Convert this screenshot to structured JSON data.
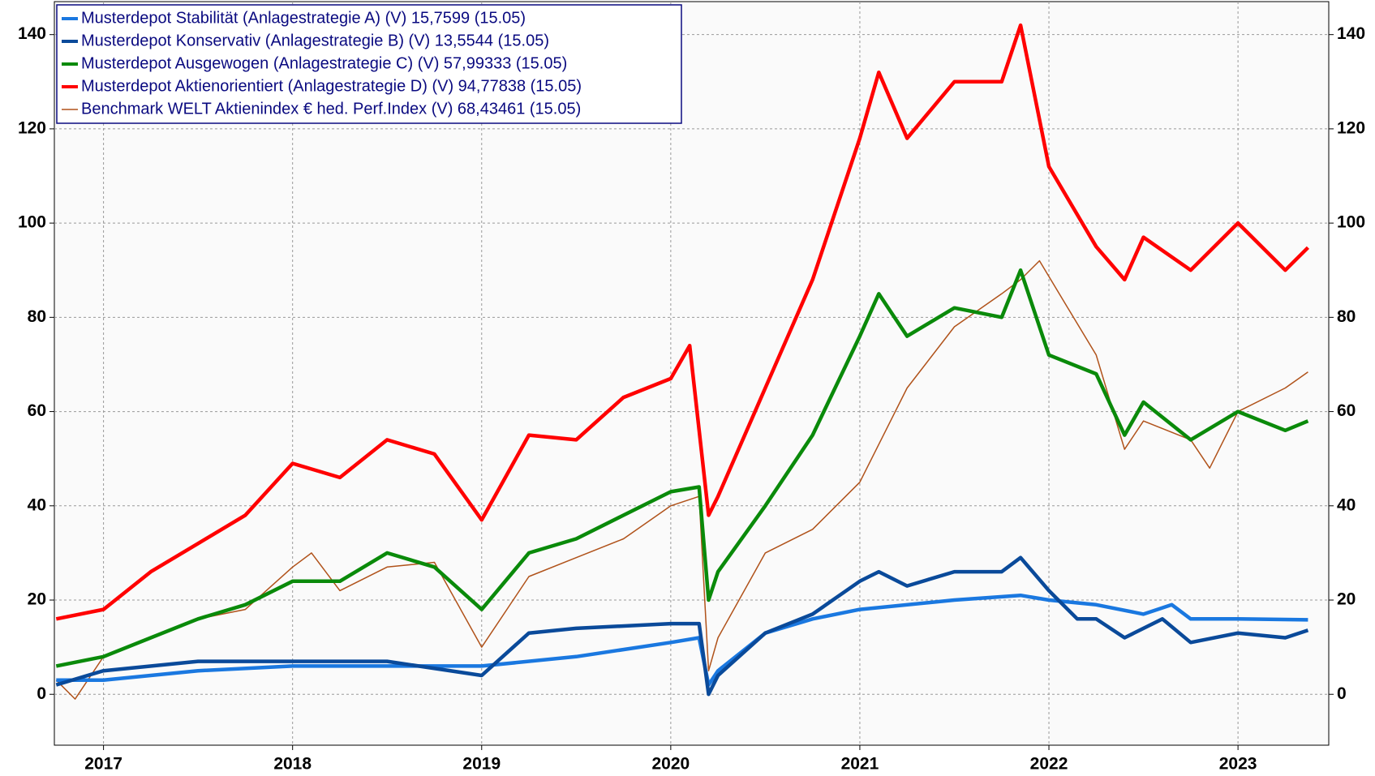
{
  "chart_data": {
    "type": "line",
    "xlim": [
      2016.74,
      2023.48
    ],
    "ylim": [
      -10.8,
      147
    ],
    "xticks": [
      2017,
      2018,
      2019,
      2020,
      2021,
      2022,
      2023
    ],
    "yticks": [
      0,
      20,
      40,
      60,
      80,
      100,
      120,
      140
    ],
    "grid": true,
    "legend": "top-left",
    "series": [
      {
        "name": "Musterdepot Stabilität (Anlagestrategie A) (V) 15,7599 (15.05)",
        "color": "#1a78e0",
        "x": [
          2016.75,
          2017.0,
          2017.5,
          2018.0,
          2018.5,
          2019.0,
          2019.5,
          2020.0,
          2020.15,
          2020.2,
          2020.25,
          2020.5,
          2020.75,
          2021.0,
          2021.5,
          2021.85,
          2022.0,
          2022.25,
          2022.5,
          2022.65,
          2022.75,
          2023.0,
          2023.37
        ],
        "values": [
          3,
          3,
          5,
          6,
          6,
          6,
          8,
          11,
          12,
          2,
          5,
          13,
          16,
          18,
          20,
          21,
          20,
          19,
          17,
          19,
          16,
          16,
          15.8
        ]
      },
      {
        "name": "Musterdepot Konservativ (Anlagestrategie B) (V) 13,5544 (15.05)",
        "color": "#0a4a9a",
        "x": [
          2016.75,
          2017.0,
          2017.5,
          2018.0,
          2018.5,
          2019.0,
          2019.25,
          2019.5,
          2020.0,
          2020.15,
          2020.2,
          2020.25,
          2020.5,
          2020.75,
          2021.0,
          2021.1,
          2021.25,
          2021.5,
          2021.75,
          2021.85,
          2022.0,
          2022.15,
          2022.25,
          2022.4,
          2022.6,
          2022.75,
          2023.0,
          2023.25,
          2023.37
        ],
        "values": [
          2,
          5,
          7,
          7,
          7,
          4,
          13,
          14,
          15,
          15,
          0,
          4,
          13,
          17,
          24,
          26,
          23,
          26,
          26,
          29,
          22,
          16,
          16,
          12,
          16,
          11,
          13,
          12,
          13.6
        ]
      },
      {
        "name": "Musterdepot Ausgewogen (Anlagestrategie C) (V) 57,99333 (15.05)",
        "color": "#0a8a0a",
        "x": [
          2016.75,
          2017.0,
          2017.25,
          2017.5,
          2017.75,
          2018.0,
          2018.25,
          2018.5,
          2018.75,
          2019.0,
          2019.25,
          2019.5,
          2019.75,
          2020.0,
          2020.15,
          2020.2,
          2020.25,
          2020.5,
          2020.75,
          2021.0,
          2021.1,
          2021.25,
          2021.5,
          2021.75,
          2021.85,
          2022.0,
          2022.25,
          2022.4,
          2022.5,
          2022.75,
          2023.0,
          2023.25,
          2023.37
        ],
        "values": [
          6,
          8,
          12,
          16,
          19,
          24,
          24,
          30,
          27,
          18,
          30,
          33,
          38,
          43,
          44,
          20,
          26,
          40,
          55,
          76,
          85,
          76,
          82,
          80,
          90,
          72,
          68,
          55,
          62,
          54,
          60,
          56,
          58
        ]
      },
      {
        "name": "Musterdepot Aktienorientiert (Anlagestrategie D) (V) 94,77838 (15.05)",
        "color": "#ff0000",
        "x": [
          2016.75,
          2017.0,
          2017.25,
          2017.5,
          2017.75,
          2018.0,
          2018.25,
          2018.5,
          2018.75,
          2019.0,
          2019.25,
          2019.5,
          2019.75,
          2020.0,
          2020.1,
          2020.2,
          2020.25,
          2020.5,
          2020.75,
          2021.0,
          2021.1,
          2021.25,
          2021.5,
          2021.75,
          2021.85,
          2022.0,
          2022.25,
          2022.4,
          2022.5,
          2022.75,
          2023.0,
          2023.25,
          2023.37
        ],
        "values": [
          16,
          18,
          26,
          32,
          38,
          49,
          46,
          54,
          51,
          37,
          55,
          54,
          63,
          67,
          74,
          38,
          42,
          65,
          88,
          118,
          132,
          118,
          130,
          130,
          142,
          112,
          95,
          88,
          97,
          90,
          100,
          90,
          94.8
        ]
      },
      {
        "name": "Benchmark WELT Aktienindex € hed. Perf.Index (V) 68,43461 (15.05)",
        "color": "#b0521a",
        "thin": true,
        "x": [
          2016.75,
          2016.85,
          2017.0,
          2017.25,
          2017.5,
          2017.75,
          2018.0,
          2018.1,
          2018.25,
          2018.5,
          2018.75,
          2019.0,
          2019.25,
          2019.5,
          2019.75,
          2020.0,
          2020.15,
          2020.2,
          2020.25,
          2020.5,
          2020.75,
          2021.0,
          2021.25,
          2021.5,
          2021.75,
          2021.85,
          2021.95,
          2022.1,
          2022.25,
          2022.4,
          2022.5,
          2022.75,
          2022.85,
          2023.0,
          2023.25,
          2023.37
        ],
        "values": [
          3,
          -1,
          8,
          12,
          16,
          18,
          27,
          30,
          22,
          27,
          28,
          10,
          25,
          29,
          33,
          40,
          42,
          5,
          12,
          30,
          35,
          45,
          65,
          78,
          85,
          88,
          92,
          82,
          72,
          52,
          58,
          54,
          48,
          60,
          65,
          68.4
        ]
      }
    ]
  }
}
